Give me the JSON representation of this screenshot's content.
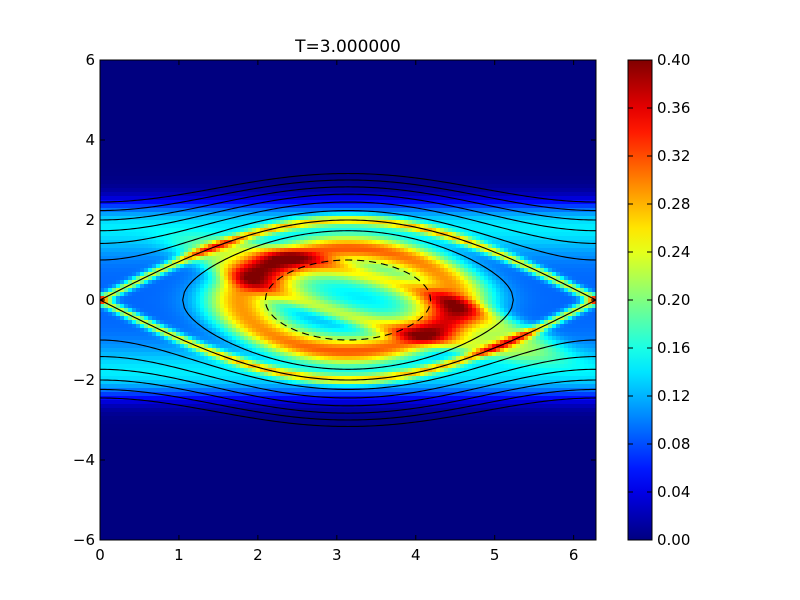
{
  "chart_data": {
    "type": "heatmap",
    "title": "T=3.000000",
    "xlabel": "",
    "ylabel": "",
    "xlim": [
      0,
      6.2832
    ],
    "ylim": [
      -6,
      6
    ],
    "x_ticks": [
      0,
      1,
      2,
      3,
      4,
      5,
      6
    ],
    "y_ticks": [
      -6,
      -4,
      -2,
      0,
      2,
      4,
      6
    ],
    "x_tick_labels": [
      "0",
      "1",
      "2",
      "3",
      "4",
      "5",
      "6"
    ],
    "y_tick_labels": [
      "−6",
      "−4",
      "−2",
      "0",
      "2",
      "4",
      "6"
    ],
    "colormap": "jet",
    "colorbar": {
      "min": 0.0,
      "max": 0.4,
      "ticks": [
        0.0,
        0.04,
        0.08,
        0.12,
        0.16,
        0.2,
        0.24,
        0.28,
        0.32,
        0.36,
        0.4
      ],
      "tick_labels": [
        "0.00",
        "0.04",
        "0.08",
        "0.12",
        "0.16",
        "0.20",
        "0.24",
        "0.28",
        "0.32",
        "0.36",
        "0.40"
      ]
    },
    "contour_levels": [
      {
        "H": -0.5,
        "style": "dashed"
      },
      {
        "H": 0.5,
        "style": "solid"
      },
      {
        "H": 1.0,
        "style": "solid"
      },
      {
        "H": 1.5,
        "style": "solid"
      },
      {
        "H": 2.0,
        "style": "solid"
      },
      {
        "H": 2.5,
        "style": "solid"
      },
      {
        "H": 3.0,
        "style": "solid"
      },
      {
        "H": 3.5,
        "style": "solid"
      },
      {
        "H": 4.0,
        "style": "solid"
      }
    ],
    "grid": false
  }
}
